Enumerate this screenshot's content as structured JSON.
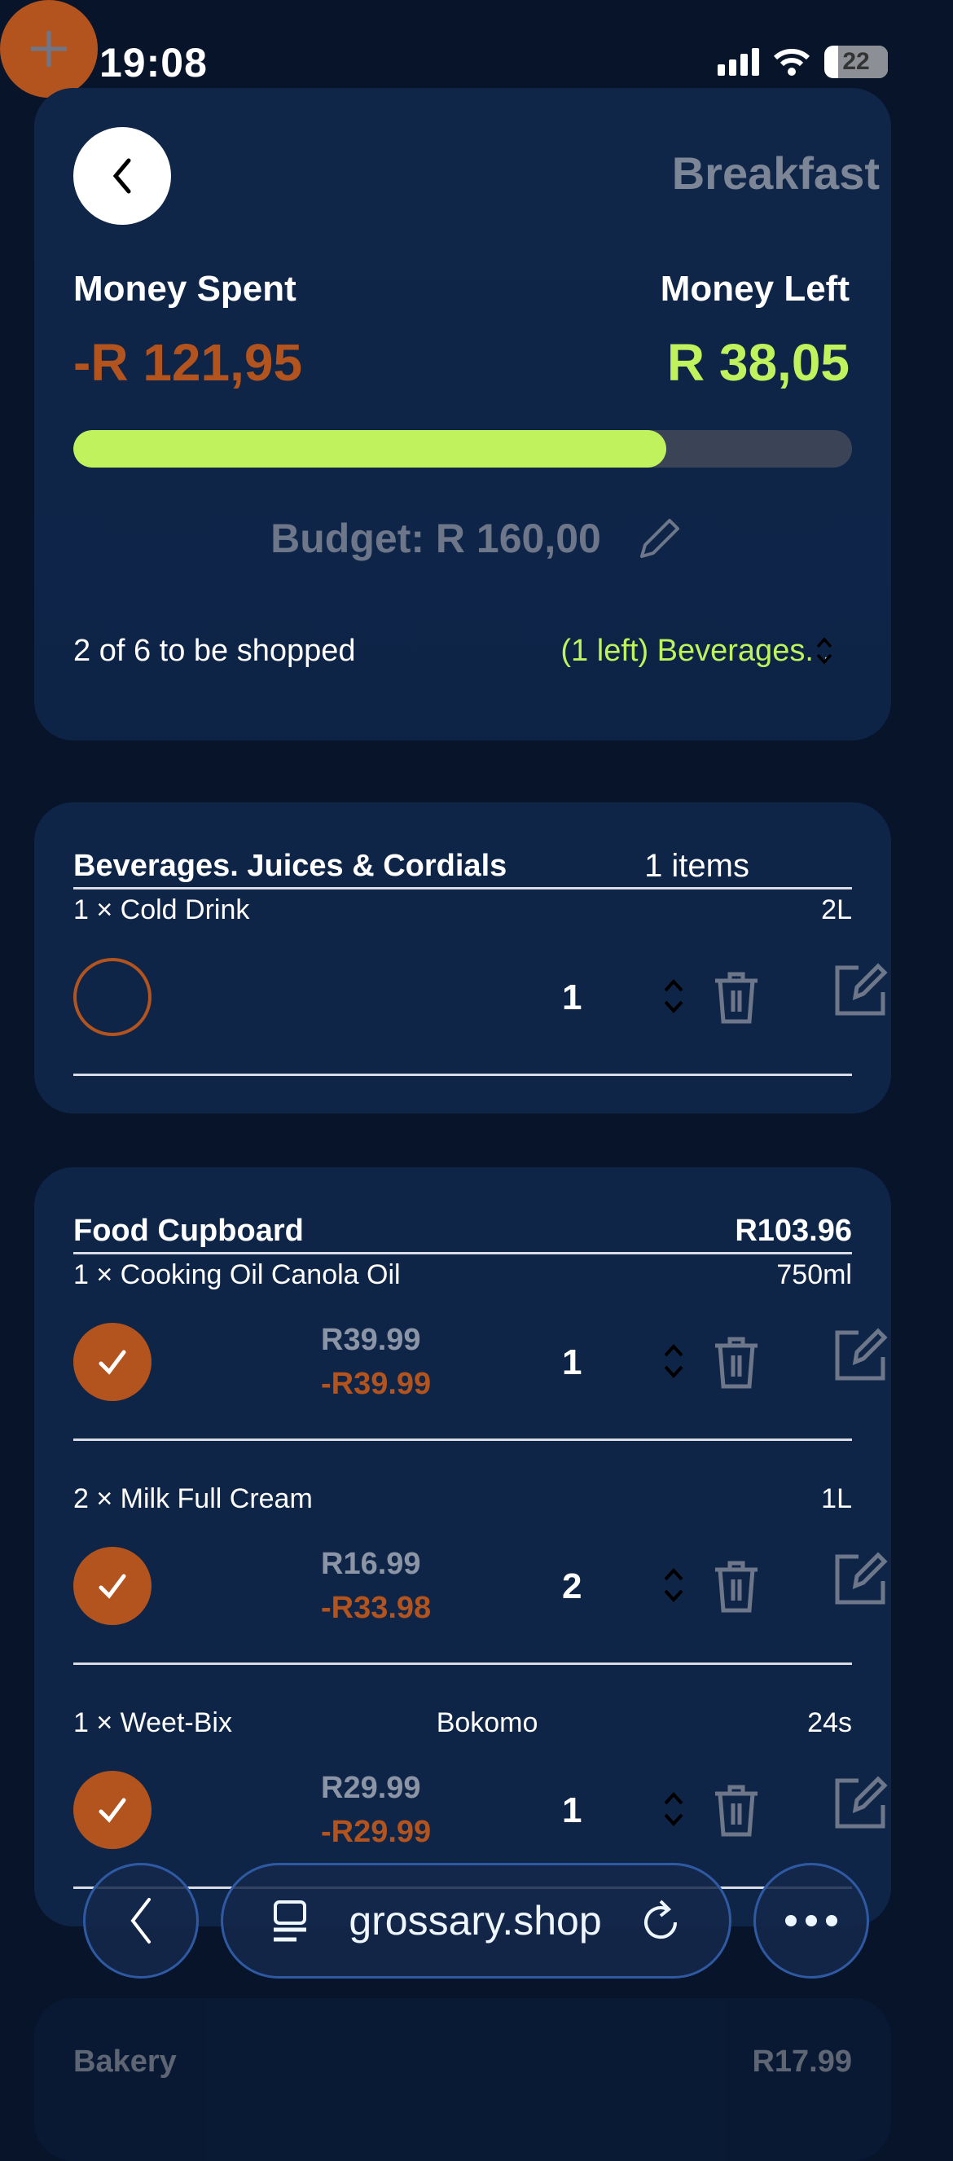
{
  "status_bar": {
    "time": "19:08",
    "battery": "22"
  },
  "header": {
    "title": "Breakfast",
    "money_spent_label": "Money Spent",
    "money_spent": "-R 121,95",
    "money_left_label": "Money Left",
    "money_left": "R 38,05",
    "progress_fraction": 0.762,
    "budget": "Budget: R 160,00",
    "shop_count": "2 of 6 to be shopped",
    "category_select": "(1 left) Beverages. ."
  },
  "colors": {
    "accent_orange": "#b3541e",
    "accent_green": "#bff25c",
    "card": "#0f2548",
    "background": "#07142a"
  },
  "categories": [
    {
      "name": "Beverages. Juices & Cordials",
      "summary": "1 items",
      "items": [
        {
          "label": "1 × Cold Drink",
          "brand": "",
          "size": "2L",
          "checked": false,
          "qty": "1"
        }
      ]
    },
    {
      "name": "Food Cupboard",
      "summary": "R103.96",
      "items": [
        {
          "label": "1 × Cooking Oil Canola Oil",
          "brand": "",
          "size": "750ml",
          "checked": true,
          "unit_price": "R39.99",
          "total": "-R39.99",
          "qty": "1"
        },
        {
          "label": "2 × Milk Full Cream",
          "brand": "",
          "size": "1L",
          "checked": true,
          "unit_price": "R16.99",
          "total": "-R33.98",
          "qty": "2"
        },
        {
          "label": "1 × Weet-Bix",
          "brand": "Bokomo",
          "size": "24s",
          "checked": true,
          "unit_price": "R29.99",
          "total": "-R29.99",
          "qty": "1"
        }
      ]
    },
    {
      "name": "Bakery",
      "summary": "R17.99",
      "items": []
    }
  ],
  "browser": {
    "url": "grossary.shop"
  }
}
